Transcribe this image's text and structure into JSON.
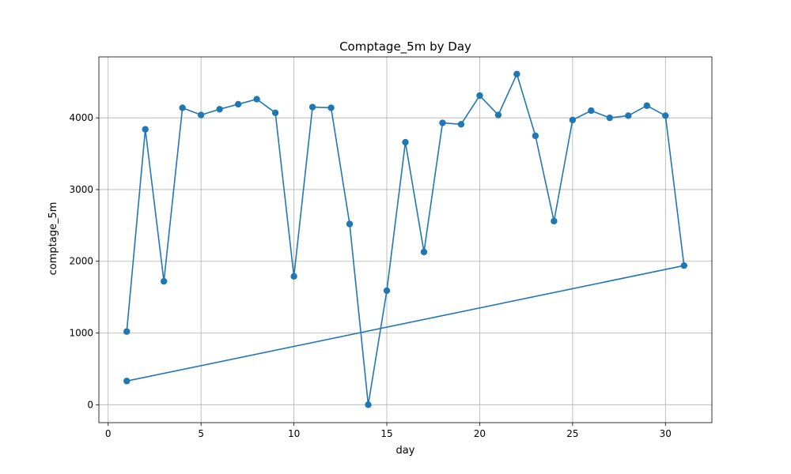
{
  "chart_data": {
    "type": "line",
    "title": "Comptage_5m by Day",
    "xlabel": "day",
    "ylabel": "comptage_5m",
    "xlim": [
      -0.5,
      32.5
    ],
    "ylim": [
      -250,
      4850
    ],
    "xticks": [
      0,
      5,
      10,
      15,
      20,
      25,
      30
    ],
    "yticks": [
      0,
      1000,
      2000,
      3000,
      4000
    ],
    "grid": true,
    "color": "#1f77b4",
    "series": [
      {
        "x": [
          1,
          2,
          3,
          4,
          5,
          6,
          7,
          8,
          9,
          10,
          11,
          12,
          13,
          14,
          15,
          16,
          17,
          18,
          19,
          20,
          21,
          22,
          23,
          24,
          25,
          26,
          27,
          28,
          29,
          30,
          31,
          1
        ],
        "y": [
          1020,
          3840,
          1720,
          4140,
          4040,
          4120,
          4190,
          4260,
          4070,
          1790,
          4150,
          4140,
          2520,
          0,
          1590,
          3660,
          2130,
          3930,
          3910,
          4310,
          4040,
          4610,
          3750,
          2560,
          3970,
          4100,
          4000,
          4030,
          4170,
          4030,
          1940,
          330
        ]
      }
    ]
  }
}
